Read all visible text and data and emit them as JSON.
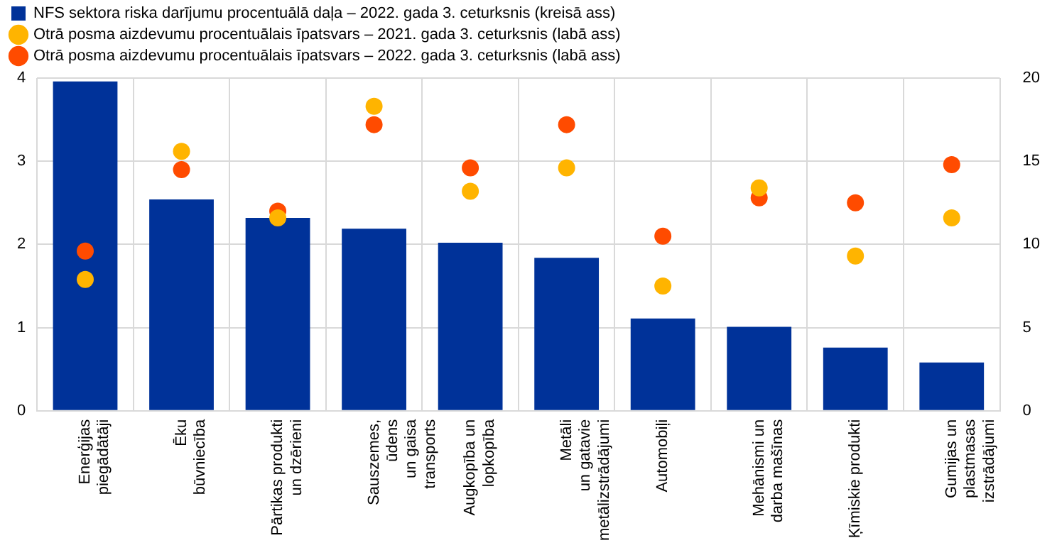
{
  "chart_data": {
    "type": "bar",
    "categories": [
      "Enerģijas\npiegādātāji",
      "Ēku\nbūvniecība",
      "Pārtikas produkti\nun dzērieni",
      "Sauszemes,\nūdens\nun gaisa\ntransports",
      "Augkopība un\nlopkopība",
      "Metāli\nun gatavie\nmetālizstrādājumi",
      "Automobiļi",
      "Mehānismi un\ndarba mašīnas",
      "Ķīmiskie produkti",
      "Gumijas un\nplastmasas\nizstrādājumi"
    ],
    "series": [
      {
        "name": "NFS sektora riska darījumu procentuālā daļa – 2022. gada 3. ceturksnis (kreisā ass)",
        "color": "#003299",
        "values": [
          3.96,
          2.54,
          2.32,
          2.19,
          2.02,
          1.84,
          1.11,
          1.01,
          0.76,
          0.58
        ]
      },
      {
        "name": "Otrā posma aizdevumu procentuālais īpatsvars – 2021. gada 3. ceturksnis (labā ass)",
        "type": "scatter",
        "axis": "y2",
        "color": "#ffb400",
        "values": [
          7.9,
          15.6,
          11.6,
          18.3,
          13.2,
          14.6,
          7.5,
          13.4,
          9.3,
          11.6
        ]
      },
      {
        "name": "Otrā posma aizdevumu procentuālais īpatsvars – 2022. gada 3. ceturksnis (labā ass)",
        "type": "scatter",
        "axis": "y2",
        "color": "#ff4b00",
        "values": [
          9.6,
          14.5,
          12.0,
          17.2,
          14.6,
          17.2,
          10.5,
          12.8,
          12.5,
          14.8
        ]
      }
    ],
    "ylim": [
      0,
      4
    ],
    "yticks": [
      0,
      1,
      2,
      3,
      4
    ],
    "y2lim": [
      0,
      20
    ],
    "y2ticks": [
      0,
      5,
      10,
      15,
      20
    ],
    "grid": true,
    "legend": "top left",
    "marker": "circle"
  }
}
